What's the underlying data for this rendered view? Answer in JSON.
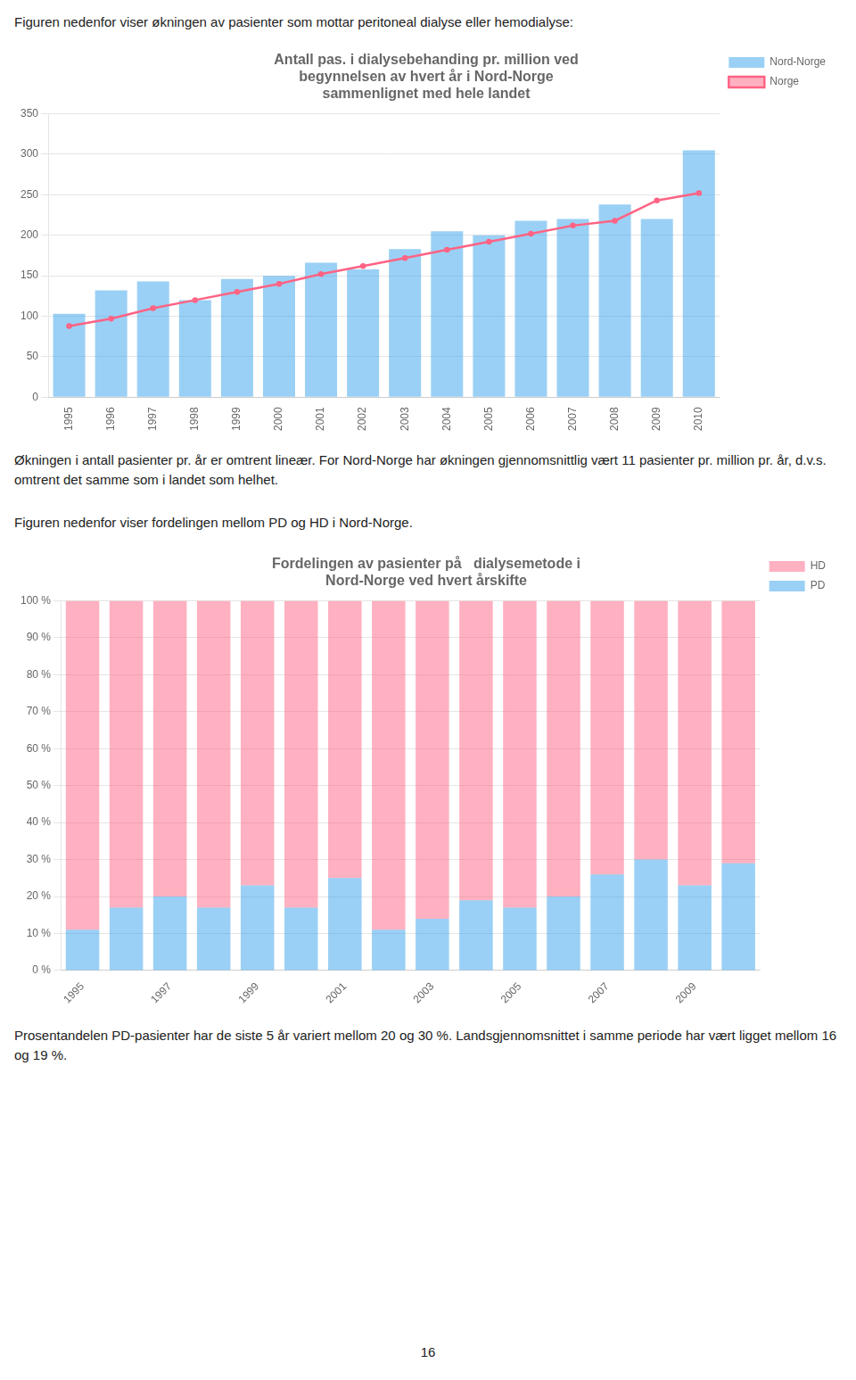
{
  "page_title": "Figuren nedenfor viser økningen av pasienter som mottar peritoneal dialyse eller hemodialyse:",
  "text1": "Økningen i antall pasienter pr. år er omtrent lineær. For Nord-Norge har økningen gjennomsnittlig vært 11 pasienter pr. million pr. år, d.v.s. omtrent det samme som i landet som helhet.",
  "text2": "Figuren nedenfor viser fordelingen mellom PD og HD i Nord-Norge.",
  "text3": "Prosentandelen PD-pasienter har de siste 5 år variert mellom 20 og 30 %. Landsgjennomsnittet i samme periode har vært ligget mellom 16 og 19 %.",
  "footer": "16",
  "chart_data": [
    {
      "type": "bar",
      "title": "Antall pas. i dialysebehanding pr. million ved\nbegynnelsen av hvert år i Nord-Norge\nsammenlignet med hele landet",
      "categories": [
        "1995",
        "1996",
        "1997",
        "1998",
        "1999",
        "2000",
        "2001",
        "2002",
        "2003",
        "2004",
        "2005",
        "2006",
        "2007",
        "2008",
        "2009",
        "2010"
      ],
      "series": [
        {
          "name": "Nord-Norge",
          "type": "bar",
          "values": [
            103,
            132,
            143,
            120,
            146,
            150,
            166,
            158,
            183,
            205,
            200,
            218,
            220,
            238,
            220,
            305
          ]
        },
        {
          "name": "Norge",
          "type": "line",
          "values": [
            88,
            97,
            110,
            120,
            130,
            140,
            152,
            162,
            172,
            182,
            192,
            202,
            212,
            218,
            243,
            252
          ]
        }
      ],
      "ylim": [
        0,
        350
      ],
      "yticks": [
        0,
        50,
        100,
        150,
        200,
        250,
        300,
        350
      ],
      "grid": true,
      "legend": "right"
    },
    {
      "type": "bar",
      "title": "Fordelingen av pasienter på   dialysemetode i\nNord-Norge ved hvert årskifte",
      "categories": [
        "1995",
        null,
        "1997",
        null,
        "1999",
        null,
        "2001",
        null,
        "2003",
        null,
        "2005",
        null,
        "2007",
        null,
        "2009",
        null
      ],
      "series": [
        {
          "name": "PD",
          "values": [
            11,
            17,
            20,
            17,
            23,
            17,
            25,
            11,
            14,
            19,
            17,
            20,
            26,
            30,
            23,
            29
          ]
        },
        {
          "name": "HD",
          "values": [
            89,
            83,
            80,
            83,
            77,
            83,
            75,
            89,
            86,
            81,
            83,
            80,
            74,
            70,
            77,
            71
          ]
        }
      ],
      "stacked": true,
      "ylim": [
        0,
        100
      ],
      "yticks": [
        {
          "value": 0,
          "label": "0 %"
        },
        {
          "value": 10,
          "label": "10 %"
        },
        {
          "value": 20,
          "label": "20 %"
        },
        {
          "value": 30,
          "label": "30 %"
        },
        {
          "value": 40,
          "label": "40 %"
        },
        {
          "value": 50,
          "label": "50 %"
        },
        {
          "value": 60,
          "label": "60 %"
        },
        {
          "value": 70,
          "label": "70 %"
        },
        {
          "value": 80,
          "label": "80 %"
        },
        {
          "value": 90,
          "label": "90 %"
        },
        {
          "value": 100,
          "label": "100 %"
        }
      ],
      "grid": true,
      "legend": "right"
    }
  ]
}
